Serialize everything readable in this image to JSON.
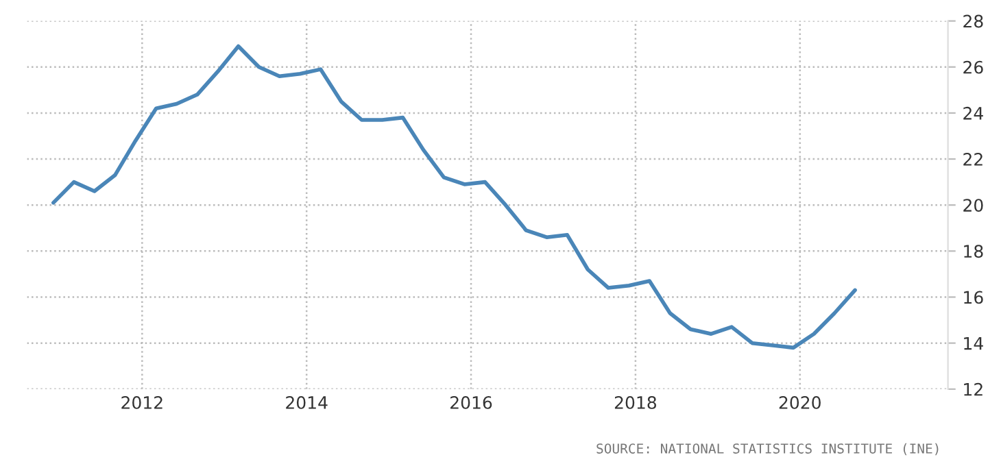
{
  "chart_data": {
    "type": "line",
    "x": [
      2010.92,
      2011.17,
      2011.42,
      2011.67,
      2011.92,
      2012.17,
      2012.42,
      2012.67,
      2012.92,
      2013.17,
      2013.42,
      2013.67,
      2013.92,
      2014.17,
      2014.42,
      2014.67,
      2014.92,
      2015.17,
      2015.42,
      2015.67,
      2015.92,
      2016.17,
      2016.42,
      2016.67,
      2016.92,
      2017.17,
      2017.42,
      2017.67,
      2017.92,
      2018.17,
      2018.42,
      2018.67,
      2018.92,
      2019.17,
      2019.42,
      2019.67,
      2019.92,
      2020.17,
      2020.42,
      2020.67
    ],
    "series": [
      {
        "color": "#4a86b8",
        "values": [
          20.1,
          21.0,
          20.6,
          21.3,
          22.8,
          24.2,
          24.4,
          24.8,
          25.8,
          26.9,
          26.0,
          25.6,
          25.7,
          25.9,
          24.5,
          23.7,
          23.7,
          23.8,
          22.4,
          21.2,
          20.9,
          21.0,
          20.0,
          18.9,
          18.6,
          18.7,
          17.2,
          16.4,
          16.5,
          16.7,
          15.3,
          14.6,
          14.4,
          14.7,
          14.0,
          13.9,
          13.8,
          14.4,
          15.3,
          16.3
        ]
      }
    ],
    "xlim": [
      2010.6,
      2021.8
    ],
    "xticks": [
      2012,
      2014,
      2016,
      2018,
      2020
    ],
    "ylim": [
      12,
      28
    ],
    "yticks": [
      12,
      14,
      16,
      18,
      20,
      22,
      24,
      26,
      28
    ],
    "grid": true,
    "marker": "none",
    "line_style": "solid",
    "annotations": [
      "SOURCE: NATIONAL STATISTICS INSTITUTE (INE)"
    ]
  }
}
